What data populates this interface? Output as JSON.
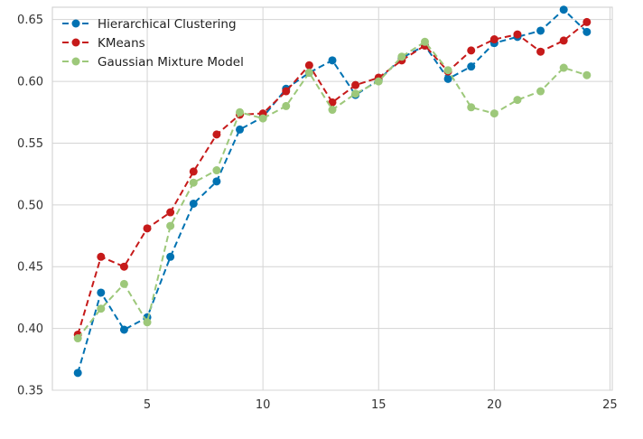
{
  "chart_data": {
    "type": "line",
    "title": "",
    "xlabel": "",
    "ylabel": "",
    "xlim": [
      0.9,
      25.1
    ],
    "ylim": [
      0.35,
      0.66
    ],
    "grid": true,
    "legend_position": "top-left",
    "x_ticks": [
      5,
      10,
      15,
      20,
      25
    ],
    "y_ticks": [
      0.35,
      0.4,
      0.45,
      0.5,
      0.55,
      0.6,
      0.65
    ],
    "x_tick_labels": [
      "5",
      "10",
      "15",
      "20",
      "25"
    ],
    "y_tick_labels": [
      "0.35",
      "0.40",
      "0.45",
      "0.50",
      "0.55",
      "0.60",
      "0.65"
    ],
    "x": [
      2,
      3,
      4,
      5,
      6,
      7,
      8,
      9,
      10,
      11,
      12,
      13,
      14,
      15,
      16,
      17,
      18,
      19,
      20,
      21,
      22,
      23,
      24
    ],
    "series": [
      {
        "name": "Hierarchical Clustering",
        "color": "#0072b2",
        "values": [
          0.364,
          0.429,
          0.399,
          0.409,
          0.458,
          0.501,
          0.519,
          0.561,
          0.571,
          0.594,
          0.607,
          0.617,
          0.589,
          0.601,
          0.619,
          0.629,
          0.602,
          0.612,
          0.631,
          0.636,
          0.641,
          0.658,
          0.64
        ]
      },
      {
        "name": "KMeans",
        "color": "#c61a1a",
        "values": [
          0.395,
          0.458,
          0.45,
          0.481,
          0.494,
          0.527,
          0.557,
          0.573,
          0.574,
          0.592,
          0.613,
          0.583,
          0.597,
          0.603,
          0.617,
          0.629,
          0.608,
          0.625,
          0.634,
          0.638,
          0.624,
          0.633,
          0.648
        ]
      },
      {
        "name": "Gaussian Mixture Model",
        "color": "#9dc87a",
        "values": [
          0.392,
          0.416,
          0.436,
          0.405,
          0.483,
          0.518,
          0.528,
          0.575,
          0.57,
          0.58,
          0.607,
          0.577,
          0.59,
          0.6,
          0.62,
          0.632,
          0.609,
          0.579,
          0.574,
          0.585,
          0.592,
          0.611,
          0.605
        ]
      }
    ]
  }
}
